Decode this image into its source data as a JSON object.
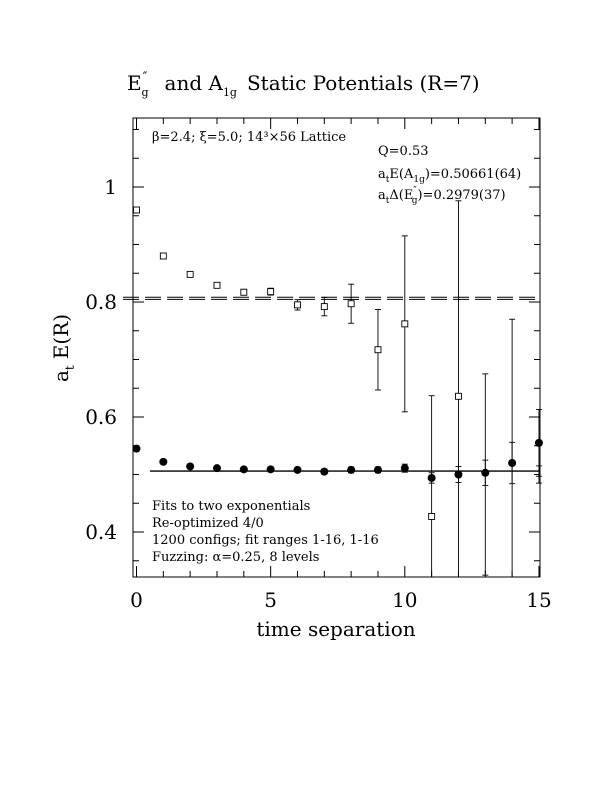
{
  "chart_data": {
    "type": "scatter",
    "title": {
      "part1_main": "E",
      "part1_sup": "″",
      "part1_sub": "g",
      "part2": "and A",
      "part2_sub": "1g",
      "part3": "Static Potentials (R=7)"
    },
    "xlabel": "time separation",
    "ylabel": {
      "main": "a",
      "sub": "t",
      "rest": "E(R)"
    },
    "xlim": [
      0,
      15
    ],
    "ylim": [
      0.32,
      1.12
    ],
    "xticks": [
      0,
      5,
      10,
      15
    ],
    "xtick_labels": [
      "0",
      "5",
      "10",
      "15"
    ],
    "yticks": [
      0.4,
      0.6,
      0.8,
      1.0
    ],
    "ytick_labels": [
      "0.4",
      "0.6",
      "0.8",
      "1"
    ],
    "header_annotation": "β=2.4; ξ=5.0; 14³×56 Lattice",
    "results": {
      "q": "Q=0.53",
      "a1g": {
        "pre": "a",
        "pre_sub": "t",
        "mid": "E(A",
        "mid_sub": "1g",
        "post": ")=0.50661(64)"
      },
      "eg": {
        "pre": "a",
        "pre_sub": "t",
        "mid": "Δ(E",
        "mid_sup": "″",
        "mid_sub": "g",
        "post": ")=0.2979(37)"
      }
    },
    "notes": [
      "Fits to two exponentials",
      "Re-optimized 4/0",
      "1200 configs; fit ranges 1-16, 1-16",
      "Fuzzing: α=0.25, 8 levels"
    ],
    "series": [
      {
        "marker": "filled-circle",
        "x": [
          0,
          1,
          2,
          3,
          4,
          5,
          6,
          7,
          8,
          9,
          10,
          11,
          12,
          13,
          14,
          15
        ],
        "y": [
          0.545,
          0.522,
          0.514,
          0.511,
          0.509,
          0.509,
          0.508,
          0.505,
          0.508,
          0.508,
          0.511,
          0.494,
          0.5,
          0.503,
          0.52,
          0.555
        ],
        "err": [
          0.003,
          0.003,
          0.003,
          0.003,
          0.003,
          0.003,
          0.004,
          0.004,
          0.005,
          0.005,
          0.007,
          0.009,
          0.014,
          0.022,
          0.036,
          0.058
        ]
      },
      {
        "marker": "open-square",
        "x": [
          0,
          1,
          2,
          3,
          4,
          5,
          6,
          7,
          8,
          9,
          10,
          11,
          12,
          13,
          14,
          15
        ],
        "y": [
          0.96,
          0.88,
          0.848,
          0.829,
          0.817,
          0.818,
          0.795,
          0.792,
          0.797,
          0.717,
          0.762,
          0.427,
          0.636,
          0.5,
          0.5,
          0.5
        ],
        "err": [
          0.003,
          0.003,
          0.004,
          0.004,
          0.005,
          0.006,
          0.009,
          0.016,
          0.034,
          0.07,
          0.153,
          0.21,
          0.34,
          0.175,
          0.27,
          0.015
        ],
        "hidden_from": 13
      }
    ],
    "fit_lines": [
      {
        "style": "solid",
        "y": 0.506,
        "x_range": [
          0.5,
          15
        ]
      },
      {
        "style": "dashed",
        "y": 0.8046,
        "x_range": [
          -0.5,
          15
        ]
      },
      {
        "style": "dashed",
        "y": 0.8082,
        "x_range": [
          -0.5,
          15
        ]
      }
    ]
  }
}
